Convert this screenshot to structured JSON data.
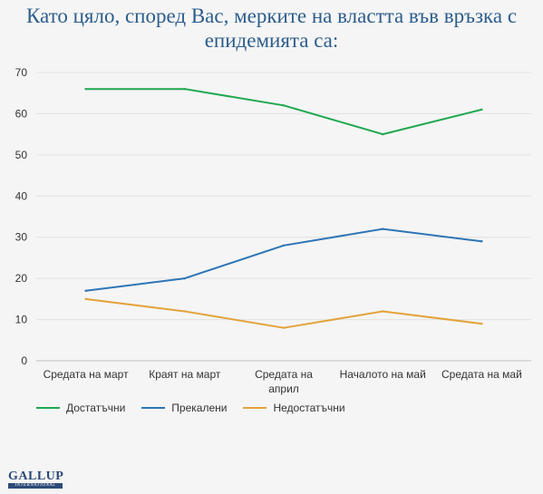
{
  "chart_data": {
    "type": "line",
    "title_lines": [
      "Като цяло, според Вас, мерките на властта във връзка с",
      "епидемията са:"
    ],
    "categories": [
      [
        "Средата на март"
      ],
      [
        "Краят на март"
      ],
      [
        "Средата на",
        "април"
      ],
      [
        "Началото на май"
      ],
      [
        "Средата на май"
      ]
    ],
    "series": [
      {
        "name": "Достатъчни",
        "color": "#1fa84f",
        "values": [
          66,
          66,
          62,
          55,
          61
        ]
      },
      {
        "name": "Прекалени",
        "color": "#2e75b6",
        "values": [
          17,
          20,
          28,
          32,
          29
        ]
      },
      {
        "name": "Недостатъчни",
        "color": "#e3a33c",
        "values": [
          15,
          12,
          8,
          12,
          9
        ]
      }
    ],
    "ylim": [
      0,
      70
    ],
    "yticks": [
      0,
      10,
      20,
      30,
      40,
      50,
      60,
      70
    ],
    "grid": true,
    "legend_position": "bottom-left"
  },
  "logo": {
    "main": "GALLUP",
    "sub": "INTERNATIONAL"
  }
}
